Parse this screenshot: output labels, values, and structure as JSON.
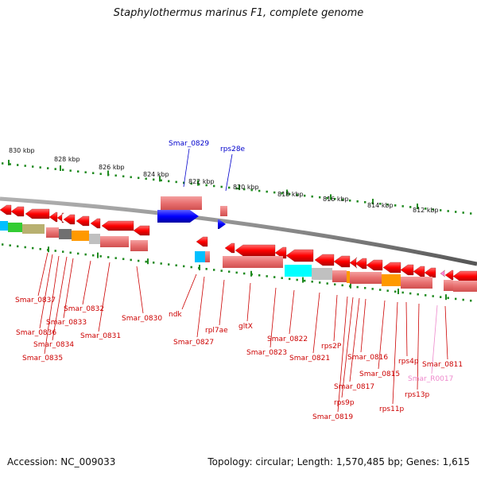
{
  "title": "Staphylothermus marinus F1, complete genome",
  "footer": {
    "accession": "Accession: NC_009033",
    "topology": "Topology: circular; Length: 1,570,485 bp; Genes: 1,615"
  },
  "colors": {
    "backbone": "#8a8a8a",
    "ruler": "#1f8a1f",
    "gene_red": "#ff0000",
    "gene_blue": "#0000ff",
    "rrna_pink": "#e888c8",
    "label_red": "#cc0000",
    "label_blue": "#0000cc",
    "label_pink": "#ee88cc"
  },
  "ruler_labels": [
    "830 kbp",
    "828 kbp",
    "826 kbp",
    "824 kbp",
    "822 kbp",
    "820 kbp",
    "818 kbp",
    "816 kbp",
    "814 kbp",
    "812 kbp"
  ],
  "top_labels": [
    {
      "name": "Smar_0829",
      "color": "blue"
    },
    {
      "name": "rps28e",
      "color": "blue"
    }
  ],
  "bottom_labels": [
    {
      "name": "Smar_0837",
      "color": "red"
    },
    {
      "name": "Smar_0836",
      "color": "red"
    },
    {
      "name": "Smar_0835",
      "color": "red"
    },
    {
      "name": "Smar_0834",
      "color": "red"
    },
    {
      "name": "Smar_0833",
      "color": "red"
    },
    {
      "name": "Smar_0832",
      "color": "red"
    },
    {
      "name": "Smar_0831",
      "color": "red"
    },
    {
      "name": "Smar_0830",
      "color": "red"
    },
    {
      "name": "ndk",
      "color": "red"
    },
    {
      "name": "Smar_0827",
      "color": "red"
    },
    {
      "name": "rpl7ae",
      "color": "red"
    },
    {
      "name": "gltX",
      "color": "red"
    },
    {
      "name": "Smar_0823",
      "color": "red"
    },
    {
      "name": "Smar_0822",
      "color": "red"
    },
    {
      "name": "Smar_0821",
      "color": "red"
    },
    {
      "name": "rps2P",
      "color": "red"
    },
    {
      "name": "Smar_0819",
      "color": "red"
    },
    {
      "name": "rps9p",
      "color": "red"
    },
    {
      "name": "Smar_0817",
      "color": "red"
    },
    {
      "name": "Smar_0816",
      "color": "red"
    },
    {
      "name": "Smar_0815",
      "color": "red"
    },
    {
      "name": "rps11p",
      "color": "red"
    },
    {
      "name": "rps13p",
      "color": "red"
    },
    {
      "name": "rps4p",
      "color": "red"
    },
    {
      "name": "Smar_R0017",
      "color": "pink"
    },
    {
      "name": "Smar_0811",
      "color": "red"
    }
  ]
}
